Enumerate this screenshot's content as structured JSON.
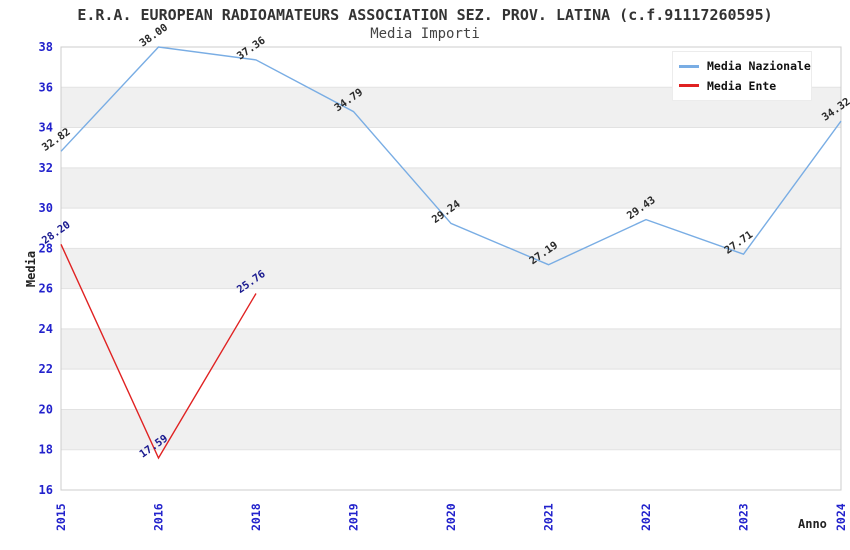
{
  "header": {
    "title": "E.R.A. EUROPEAN RADIOAMATEURS ASSOCIATION SEZ. PROV. LATINA (c.f.91117260595)",
    "subtitle": "Media Importi"
  },
  "legend": {
    "position": "top-right",
    "items": [
      {
        "label": "Media Nazionale",
        "color": "#79ade4"
      },
      {
        "label": "Media Ente",
        "color": "#e02222"
      }
    ]
  },
  "chart_data": {
    "type": "line",
    "title": "E.R.A. EUROPEAN RADIOAMATEURS ASSOCIATION SEZ. PROV. LATINA (c.f.91117260595)",
    "subtitle": "Media Importi",
    "xlabel": "Anno",
    "ylabel": "Media",
    "categories": [
      "2015",
      "2016",
      "2018",
      "2019",
      "2020",
      "2021",
      "2022",
      "2023",
      "2024"
    ],
    "series": [
      {
        "name": "Media Nazionale",
        "color": "#79ade4",
        "label_color": "#2a2a2a",
        "values": [
          32.82,
          38.0,
          37.36,
          34.79,
          29.24,
          27.19,
          29.43,
          27.71,
          34.32
        ]
      },
      {
        "name": "Media Ente",
        "color": "#e02222",
        "label_color": "#1a1a8f",
        "values": [
          28.2,
          17.59,
          25.76,
          null,
          null,
          null,
          null,
          null,
          null
        ]
      }
    ],
    "ylim": [
      16,
      38
    ],
    "ytick_step": 2,
    "yticks": [
      16,
      18,
      20,
      22,
      24,
      26,
      28,
      30,
      32,
      34,
      36,
      38
    ],
    "grid": true,
    "legend_position": "top-right",
    "colors": {
      "band_white": "#ffffff",
      "band_gray": "#f0f0f0",
      "gridline": "#e2e2e2",
      "plot_border": "#cccccc",
      "tick_label": "#2222cc",
      "axis_title": "#222222"
    }
  }
}
